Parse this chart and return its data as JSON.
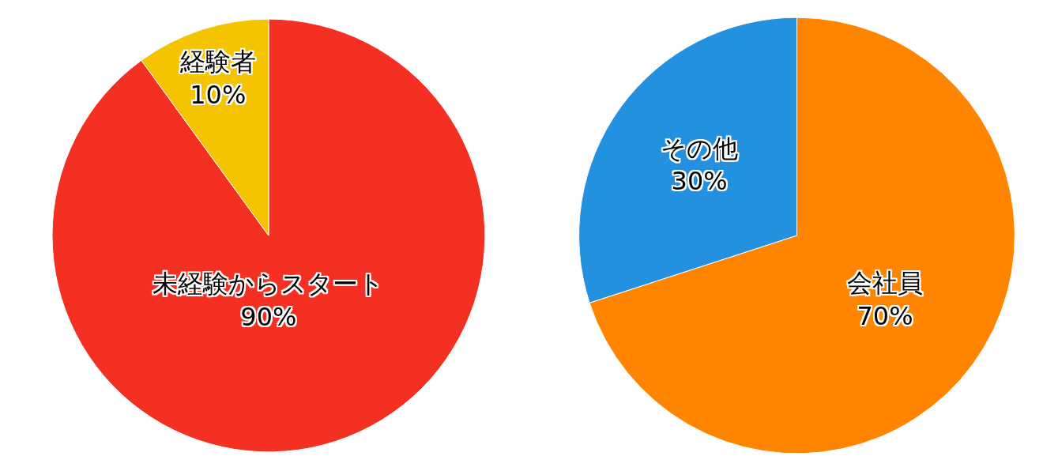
{
  "chart_data": [
    {
      "type": "pie",
      "categories": [
        "未経験からスタート",
        "経験者"
      ],
      "values": [
        90,
        10
      ],
      "value_labels": [
        "90%",
        "10%"
      ],
      "colors": [
        "#f33022",
        "#f5c400"
      ],
      "legend": false
    },
    {
      "type": "pie",
      "categories": [
        "会社員",
        "その他"
      ],
      "values": [
        70,
        30
      ],
      "value_labels": [
        "70%",
        "30%"
      ],
      "colors": [
        "#ff8400",
        "#2490e0"
      ],
      "legend": false
    }
  ]
}
